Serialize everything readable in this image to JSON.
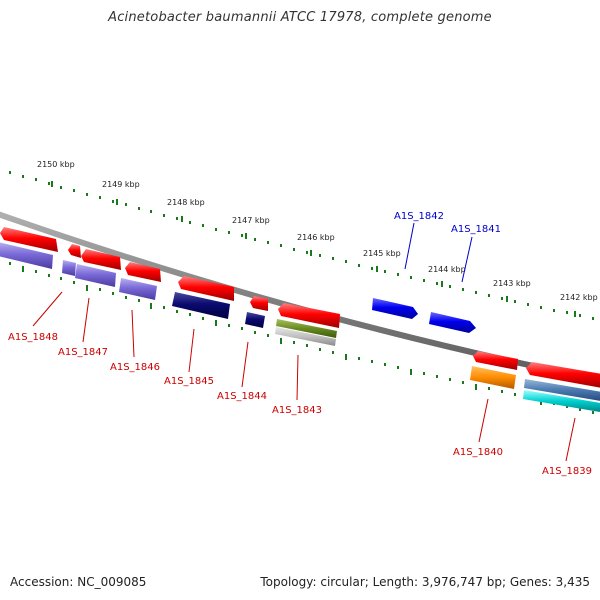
{
  "title": "Acinetobacter baumannii ATCC 17978, complete genome",
  "footer": {
    "accession": "Accession: NC_009085",
    "summary": "Topology: circular; Length: 3,976,747 bp; Genes: 3,435"
  },
  "colors": {
    "backbone": "#888888",
    "tick": "#1a7a1a",
    "forward_label": "#0000cc",
    "reverse_label": "#cc0000"
  },
  "kbp_labels": [
    "2150 kbp",
    "2149 kbp",
    "2148 kbp",
    "2147 kbp",
    "2146 kbp",
    "2145 kbp",
    "2144 kbp",
    "2143 kbp",
    "2142 kbp"
  ],
  "gene_labels": {
    "forward": [
      "A1S_1842",
      "A1S_1841"
    ],
    "reverse": [
      "A1S_1848",
      "A1S_1847",
      "A1S_1846",
      "A1S_1845",
      "A1S_1844",
      "A1S_1843",
      "A1S_1840",
      "A1S_1839"
    ]
  }
}
